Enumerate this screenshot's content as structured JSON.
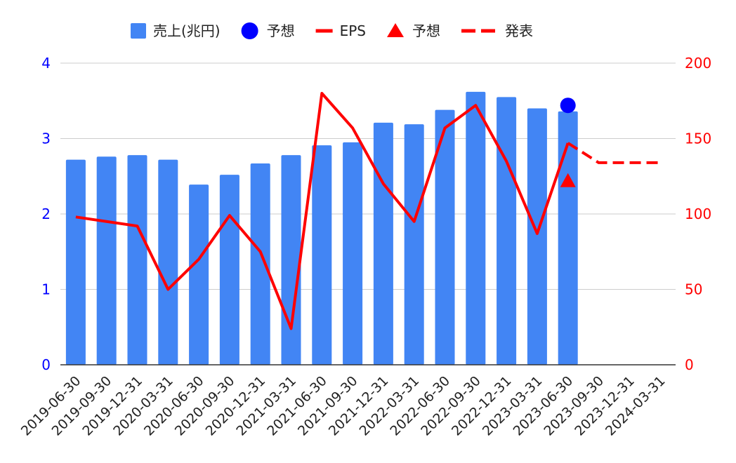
{
  "chart_data": {
    "type": "bar",
    "categories": [
      "2019-06-30",
      "2019-09-30",
      "2019-12-31",
      "2020-03-31",
      "2020-06-30",
      "2020-09-30",
      "2020-12-31",
      "2021-03-31",
      "2021-06-30",
      "2021-09-30",
      "2021-12-31",
      "2022-03-31",
      "2022-06-30",
      "2022-09-30",
      "2022-12-31",
      "2023-03-31",
      "2023-06-30",
      "2023-09-30",
      "2023-12-31",
      "2024-03-31"
    ],
    "left_axis": {
      "ylim": [
        0,
        4
      ],
      "ticks": [
        "0",
        "1",
        "2",
        "3",
        "4"
      ],
      "color": "#0000ff"
    },
    "right_axis": {
      "ylim": [
        0,
        200
      ],
      "ticks": [
        "0",
        "50",
        "100",
        "150",
        "200"
      ],
      "color": "#ff0000"
    },
    "grid": true,
    "legend_position": "top",
    "series": [
      {
        "name": "売上(兆円)",
        "kind": "bar",
        "axis": "left",
        "color": "#4285f4",
        "values": [
          2.72,
          2.76,
          2.78,
          2.72,
          2.39,
          2.52,
          2.67,
          2.78,
          2.91,
          2.95,
          3.21,
          3.19,
          3.38,
          3.62,
          3.55,
          3.4,
          3.36,
          null,
          null,
          null
        ]
      },
      {
        "name": "予想",
        "kind": "point-circle",
        "axis": "left",
        "color": "#0000ff",
        "values": [
          null,
          null,
          null,
          null,
          null,
          null,
          null,
          null,
          null,
          null,
          null,
          null,
          null,
          null,
          null,
          null,
          3.44,
          null,
          null,
          null
        ]
      },
      {
        "name": "EPS",
        "kind": "line",
        "axis": "right",
        "color": "#ff0000",
        "values": [
          98,
          95,
          92,
          50,
          70,
          99,
          75,
          24,
          180,
          157,
          120,
          95,
          157,
          172,
          135,
          87,
          147,
          null,
          null,
          null
        ]
      },
      {
        "name": "予想",
        "kind": "point-triangle",
        "axis": "right",
        "color": "#ff0000",
        "values": [
          null,
          null,
          null,
          null,
          null,
          null,
          null,
          null,
          null,
          null,
          null,
          null,
          null,
          null,
          null,
          null,
          122,
          null,
          null,
          null
        ]
      },
      {
        "name": "発表",
        "kind": "dashed-line",
        "axis": "right",
        "color": "#ff0000",
        "values": [
          null,
          null,
          null,
          null,
          null,
          null,
          null,
          null,
          null,
          null,
          null,
          null,
          null,
          null,
          null,
          null,
          147,
          134,
          134,
          134
        ]
      }
    ]
  }
}
